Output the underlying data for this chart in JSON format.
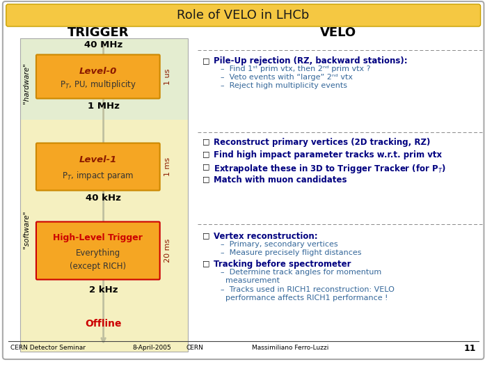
{
  "title": "Role of VELO in LHCb",
  "title_bg": "#F5C842",
  "title_fontsize": 13,
  "trigger_header": "TRIGGER",
  "velo_header": "VELO",
  "left_panel_top_bg": "#E8EDD8",
  "left_panel_bot_bg": "#F5F0C8",
  "level0_bg": "#F5A623",
  "level0_border": "#CC8800",
  "level0_line1": "Level-0",
  "level0_line2": "P$_T$, PU, multiplicity",
  "level0_time": "1 us",
  "level1_bg": "#F5A623",
  "level1_border": "#CC8800",
  "level1_line1": "Level-1",
  "level1_line2": "P$_T$, impact param",
  "level1_time": "1 ms",
  "hlt_bg_fill": "#F5A623",
  "hlt_border": "#CC0000",
  "hlt_line1": "High-Level Trigger",
  "hlt_line2": "Everything",
  "hlt_line3": "(except RICH)",
  "hlt_time": "20 ms",
  "freq_40MHz": "40 MHz",
  "freq_1MHz": "1 MHz",
  "freq_40kHz": "40 kHz",
  "freq_2kHz": "2 kHz",
  "offline": "Offline",
  "hardware_label": "\"hardware\"",
  "software_label": "\"software\"",
  "bullet_color": "#000080",
  "sub_color": "#336699",
  "footer_left": "CERN Detector Seminar",
  "footer_date": "8-April-2005",
  "footer_cern": "CERN",
  "footer_author": "Massimiliano Ferro-Luzzi",
  "footer_page": "11",
  "bg_color": "#FFFFFF",
  "separator_color": "#808080"
}
